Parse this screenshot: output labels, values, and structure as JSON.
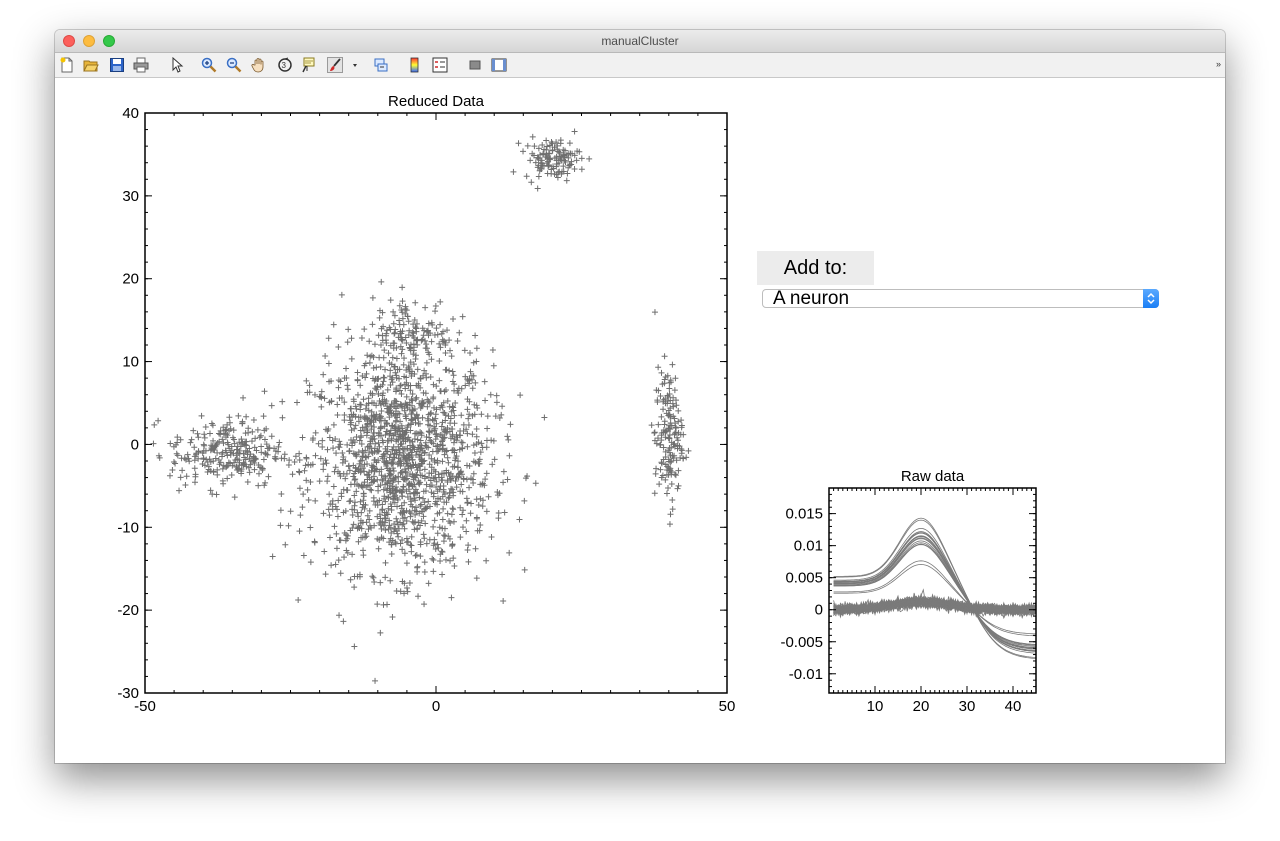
{
  "window": {
    "title": "manualCluster"
  },
  "toolbar": {
    "icons": [
      "new-figure-icon",
      "open-file-icon",
      "save-icon",
      "print-icon",
      "pointer-icon",
      "zoom-in-icon",
      "zoom-out-icon",
      "pan-hand-icon",
      "rotate-3d-icon",
      "data-cursor-icon",
      "brush-icon",
      "brush-dropdown-icon",
      "link-plot-icon",
      "colorbar-icon",
      "legend-icon",
      "hide-plot-tools-icon",
      "show-plot-tools-icon"
    ],
    "overflow_glyph": "»"
  },
  "panel": {
    "add_to_label": "Add to:",
    "selected_option": "A neuron"
  },
  "chart_data": [
    {
      "type": "scatter",
      "title": "Reduced Data",
      "xlabel": "",
      "ylabel": "",
      "xlim": [
        -50,
        50
      ],
      "ylim": [
        -30,
        40
      ],
      "xticks": [
        -50,
        0,
        50
      ],
      "yticks": [
        -30,
        -20,
        -10,
        0,
        10,
        20,
        30,
        40
      ],
      "marker": "+",
      "color": "#6e6e6e",
      "grid": false,
      "clusters": [
        {
          "center": [
            -6,
            -2
          ],
          "spread": [
            13,
            11
          ],
          "count": 1500
        },
        {
          "center": [
            -36,
            -1
          ],
          "spread": [
            8,
            3.5
          ],
          "count": 260
        },
        {
          "center": [
            -4,
            13
          ],
          "spread": [
            6,
            4
          ],
          "count": 140
        },
        {
          "center": [
            20,
            34.5
          ],
          "spread": [
            4,
            2
          ],
          "count": 120
        },
        {
          "center": [
            40,
            1
          ],
          "spread": [
            2,
            7
          ],
          "count": 160
        }
      ]
    },
    {
      "type": "line",
      "title": "Raw data",
      "xlabel": "",
      "ylabel": "",
      "xlim": [
        0,
        45
      ],
      "ylim": [
        -0.013,
        0.019
      ],
      "xticks": [
        10,
        20,
        30,
        40
      ],
      "yticks": [
        0.015,
        0.01,
        0.005,
        0,
        -0.005,
        -0.01
      ],
      "ytick_labels": [
        "0.015",
        "0.01",
        "0.005",
        "0",
        "-0.005",
        "-0.01"
      ],
      "color": "#7a7a7a",
      "series_groups": [
        {
          "shape": "spike",
          "peak_x": 20,
          "peak_y": 0.011,
          "start_y": 0.004,
          "end_y": -0.006,
          "count": 20
        },
        {
          "shape": "flat",
          "peak_x": 20,
          "peak_y": 0.0012,
          "start_y": 0.0,
          "end_y": 0.0,
          "count": 60
        }
      ]
    }
  ]
}
